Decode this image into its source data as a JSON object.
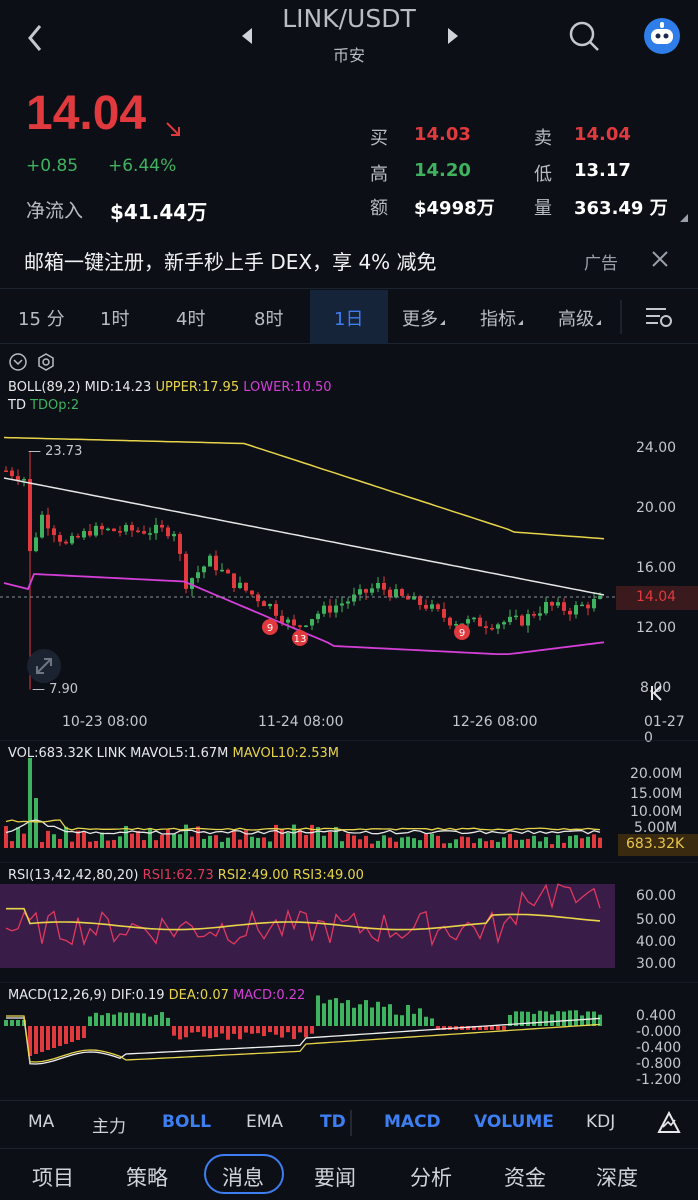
{
  "header": {
    "pair": "LINK/USDT",
    "exchange": "币安"
  },
  "quote": {
    "price": "14.04",
    "change": "+0.85",
    "change_pct": "+6.44%",
    "netflow_label": "净流入",
    "netflow_value": "$41.44万",
    "bid_label": "买",
    "bid": "14.03",
    "ask_label": "卖",
    "ask": "14.04",
    "high_label": "高",
    "high": "14.20",
    "low_label": "低",
    "low": "13.17",
    "amount_label": "额",
    "amount": "$4998万",
    "volume_label": "量",
    "volume": "363.49 万"
  },
  "ad": {
    "text": "邮箱一键注册，新手秒上手 DEX，享 4% 减免",
    "tag": "广告"
  },
  "tabs": [
    "15 分",
    "1时",
    "4时",
    "8时",
    "1日",
    "更多",
    "指标",
    "高级"
  ],
  "active_tab": "1日",
  "main_chart": {
    "boll_label": "BOLL(89,2)",
    "mid": "MID:14.23",
    "upper": "UPPER:17.95",
    "lower": "LOWER:10.50",
    "td_label": "TD",
    "td_param": "TDOp:2",
    "max_label": "— 23.73",
    "min_label": "— 7.90",
    "price_tag": "14.04",
    "y_ticks": [
      "24.00",
      "20.00",
      "16.00",
      "12.00",
      "8.00"
    ],
    "x_ticks": [
      "10-23 08:00",
      "11-24 08:00",
      "12-26 08:00",
      "01-27 0"
    ],
    "td_marks": [
      "9",
      "13",
      "9"
    ]
  },
  "vol_chart": {
    "label": "VOL:683.32K LINK",
    "mavol5": "MAVOL5:1.67M",
    "mavol10": "MAVOL10:2.53M",
    "y_ticks": [
      "20.00M",
      "15.00M",
      "10.00M",
      "5.00M"
    ],
    "tag": "683.32K"
  },
  "rsi_chart": {
    "label": "RSI(13,42,42,80,20)",
    "rsi1": "RSI1:62.73",
    "rsi2": "RSI2:49.00",
    "rsi3": "RSI3:49.00",
    "y_ticks": [
      "60.00",
      "50.00",
      "40.00",
      "30.00"
    ]
  },
  "macd_chart": {
    "label": "MACD(12,26,9)",
    "dif": "DIF:0.19",
    "dea": "DEA:0.07",
    "macd": "MACD:0.22",
    "y_ticks": [
      "0.400",
      "-0.000",
      "-0.400",
      "-0.800",
      "-1.200"
    ]
  },
  "indicators": [
    "MA",
    "主力",
    "BOLL",
    "EMA",
    "TD",
    "MACD",
    "VOLUME",
    "KDJ"
  ],
  "nav": [
    "项目",
    "策略",
    "消息",
    "要闻",
    "分析",
    "资金",
    "深度"
  ],
  "active_nav": "消息",
  "colors": {
    "up": "#3fb25f",
    "down": "#e0393e",
    "accent": "#3d7ef0",
    "upper": "#e8d44a",
    "lower": "#d43fd8",
    "mid": "#e6e6e6"
  }
}
